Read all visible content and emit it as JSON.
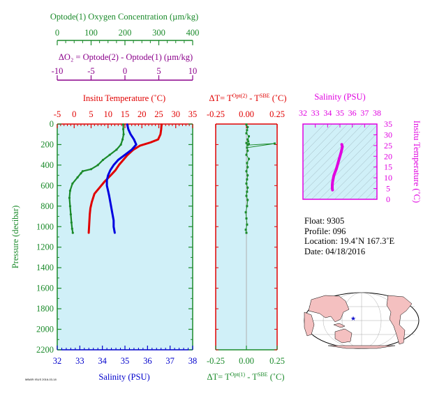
{
  "oxygen_axis": {
    "title": "Optode(1) Oxygen Concentration (µm/kg)",
    "ticks": [
      "0",
      "100",
      "200",
      "300",
      "400"
    ],
    "color": "#1a8a2a"
  },
  "delta_o2_axis": {
    "title": "ΔO₂ = Optode(2) - Optode(1)   (µm/kg)",
    "ticks": [
      "-10",
      "-5",
      "0",
      "5",
      "10"
    ],
    "color": "#8b008b"
  },
  "temp_axis": {
    "title": "Insitu Temperature (˚C)",
    "ticks": [
      "-5",
      "0",
      "5",
      "10",
      "15",
      "20",
      "25",
      "30",
      "35"
    ],
    "color": "#e00000"
  },
  "pressure_axis": {
    "title": "Pressure (decibar)",
    "ticks": [
      "0",
      "200",
      "400",
      "600",
      "800",
      "1000",
      "1200",
      "1400",
      "1600",
      "1800",
      "2000",
      "2200"
    ],
    "color": "#1a8a2a"
  },
  "salinity_axis": {
    "title": "Salinity (PSU)",
    "ticks": [
      "32",
      "33",
      "34",
      "35",
      "36",
      "37",
      "38"
    ],
    "color": "#0000cc"
  },
  "dt_axis": {
    "top_title": "ΔT= T^Opt(2) - T^SBE (˚C)",
    "bottom_title": "ΔT= T^Opt(1) - T^SBE (˚C)",
    "ticks": [
      "-0.25",
      "0.00",
      "0.25"
    ],
    "top_color": "#e00000",
    "bottom_color": "#1a8a2a"
  },
  "ts_axis": {
    "title": "Salinity (PSU)",
    "ticks": [
      "32",
      "33",
      "34",
      "35",
      "36",
      "37",
      "38"
    ],
    "y_title": "Insitu Temperature (˚C)",
    "y_ticks": [
      "0",
      "5",
      "10",
      "15",
      "20",
      "25",
      "30",
      "35"
    ],
    "color": "#e000e0"
  },
  "footnote": "MBARI ISUS 2016-03-18",
  "info": {
    "float": "Float:  9305",
    "profile": "Profile:  096",
    "location": "Location:  19.4˚N  167.3˚E",
    "date": "Date:  04/18/2016"
  },
  "colors": {
    "panel_bg": "#d0f0f8",
    "temperature": "#e00000",
    "salinity": "#0000e0",
    "oxygen": "#1a8a2a",
    "ts_curve": "#e000e0",
    "map_land": "#f4c0c0",
    "map_ocean": "#ffffff",
    "map_marker": "#1010cc"
  },
  "chart_data": [
    {
      "type": "line",
      "title": "",
      "ylabel": "Pressure (decibar)",
      "ylim": [
        2200,
        0
      ],
      "series": [
        {
          "name": "Insitu Temperature (˚C)",
          "x_axis": "temperature",
          "xlim": [
            -5,
            35
          ],
          "x": [
            25.8,
            25.7,
            25.5,
            24.8,
            22.5,
            19.5,
            17.5,
            15.8,
            14.5,
            13.2,
            12.2,
            10.8,
            9.0,
            7.5,
            6.0,
            5.2,
            4.8,
            4.6,
            4.5,
            4.4,
            4.3
          ],
          "y": [
            5,
            50,
            100,
            150,
            180,
            210,
            250,
            300,
            350,
            400,
            450,
            500,
            560,
            620,
            680,
            760,
            820,
            880,
            940,
            1000,
            1060
          ]
        },
        {
          "name": "Salinity (PSU)",
          "x_axis": "salinity",
          "xlim": [
            32,
            38
          ],
          "x": [
            35.1,
            35.15,
            35.25,
            35.4,
            35.5,
            35.3,
            35.0,
            34.7,
            34.5,
            34.35,
            34.25,
            34.2,
            34.2,
            34.25,
            34.3,
            34.35,
            34.4,
            34.45,
            34.5,
            34.5,
            34.55
          ],
          "y": [
            5,
            50,
            100,
            150,
            200,
            250,
            300,
            350,
            400,
            450,
            500,
            550,
            600,
            650,
            700,
            760,
            820,
            880,
            940,
            1000,
            1060
          ]
        },
        {
          "name": "Optode(1) Oxygen Concentration (µm/kg)",
          "x_axis": "oxygen",
          "xlim": [
            0,
            400
          ],
          "x": [
            195,
            195,
            196,
            193,
            188,
            175,
            155,
            135,
            120,
            100,
            75,
            70,
            60,
            45,
            38,
            36,
            38,
            40,
            42,
            44,
            46
          ],
          "y": [
            5,
            50,
            100,
            150,
            200,
            250,
            300,
            350,
            400,
            440,
            460,
            480,
            520,
            580,
            650,
            720,
            800,
            880,
            960,
            1020,
            1060
          ]
        },
        {
          "name": "ΔO₂ = Optode(2) - Optode(1)   (µm/kg)",
          "x_axis": "delta_o2",
          "xlim": [
            -10,
            10
          ],
          "x": [],
          "y": []
        }
      ]
    },
    {
      "type": "scatter",
      "title": "",
      "ylim": [
        2200,
        0
      ],
      "series": [
        {
          "name": "ΔT= T^Opt(1) - T^SBE (˚C)",
          "xlim": [
            -0.25,
            0.25
          ],
          "x": [
            0.0,
            0.01,
            0.005,
            0.0,
            0.02,
            0.01,
            0.015,
            0.0,
            0.02,
            0.01,
            0.23,
            0.005,
            0.01,
            0.0,
            0.02,
            0.005,
            0.01,
            0.0,
            0.01,
            0.005,
            0.0,
            0.01,
            0.005,
            0.0,
            0.01,
            0.005,
            -0.005,
            0.0,
            0.005,
            -0.005,
            0.0
          ],
          "y": [
            5,
            30,
            60,
            90,
            120,
            150,
            170,
            185,
            195,
            205,
            190,
            230,
            260,
            300,
            340,
            380,
            420,
            460,
            500,
            540,
            580,
            620,
            660,
            700,
            740,
            800,
            860,
            920,
            980,
            1030,
            1060
          ]
        }
      ]
    },
    {
      "type": "line",
      "title": "",
      "xlabel": "Salinity (PSU)",
      "ylabel": "Insitu Temperature (˚C)",
      "xlim": [
        32,
        38
      ],
      "ylim": [
        0,
        35
      ],
      "series": [
        {
          "name": "",
          "x": [
            35.15,
            35.2,
            35.1,
            35.0,
            34.9,
            34.8,
            34.7,
            34.6,
            34.5,
            34.45,
            34.4,
            34.38,
            34.38,
            34.4
          ],
          "y": [
            25.5,
            24.5,
            22,
            20,
            18,
            16,
            14,
            12.5,
            11,
            9.5,
            8,
            6.5,
            5,
            4.3
          ]
        }
      ]
    }
  ]
}
